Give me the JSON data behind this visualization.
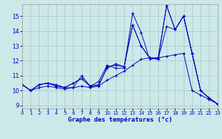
{
  "xlabel": "Graphe des températures (°c)",
  "background_color": "#cce8e8",
  "grid_color": "#aacccc",
  "line_color": "#0000bb",
  "xlim": [
    0,
    23
  ],
  "ylim": [
    8.8,
    15.8
  ],
  "xticks": [
    0,
    1,
    2,
    3,
    4,
    5,
    6,
    7,
    8,
    9,
    10,
    11,
    12,
    13,
    14,
    15,
    16,
    17,
    18,
    19,
    20,
    21,
    22,
    23
  ],
  "yticks": [
    9,
    10,
    11,
    12,
    13,
    14,
    15
  ],
  "curves": [
    {
      "x": [
        0,
        1,
        2,
        3,
        4,
        5,
        6,
        7,
        8,
        9,
        10,
        11,
        12,
        13,
        14,
        15,
        16,
        17,
        18,
        19,
        20,
        21,
        22,
        23
      ],
      "y": [
        10.4,
        10.0,
        10.4,
        10.5,
        10.4,
        10.2,
        10.2,
        11.0,
        10.3,
        10.6,
        11.7,
        11.5,
        11.5,
        15.2,
        13.9,
        12.1,
        12.2,
        15.7,
        14.1,
        15.0,
        12.5,
        10.0,
        9.5,
        9.1
      ]
    },
    {
      "x": [
        0,
        1,
        2,
        3,
        4,
        5,
        6,
        7,
        8,
        9,
        10,
        11,
        12,
        13,
        14,
        15,
        16,
        17,
        18,
        19,
        20,
        21,
        22,
        23
      ],
      "y": [
        10.4,
        10.0,
        10.4,
        10.5,
        10.3,
        10.2,
        10.5,
        10.8,
        10.3,
        10.4,
        11.5,
        11.8,
        11.6,
        14.4,
        13.0,
        12.2,
        12.1,
        15.7,
        14.1,
        15.0,
        12.5,
        10.0,
        9.5,
        9.1
      ]
    },
    {
      "x": [
        0,
        1,
        2,
        3,
        4,
        5,
        6,
        7,
        8,
        9,
        10,
        11,
        12,
        13,
        14,
        15,
        16,
        17,
        18,
        19,
        20,
        21,
        22,
        23
      ],
      "y": [
        10.4,
        10.0,
        10.4,
        10.5,
        10.3,
        10.2,
        10.5,
        10.8,
        10.3,
        10.3,
        11.6,
        11.7,
        11.6,
        14.4,
        13.0,
        12.2,
        12.1,
        14.3,
        14.1,
        15.0,
        12.5,
        10.0,
        9.5,
        9.1
      ]
    },
    {
      "x": [
        0,
        1,
        2,
        3,
        4,
        5,
        6,
        7,
        8,
        9,
        10,
        11,
        12,
        13,
        14,
        15,
        16,
        17,
        18,
        19,
        20,
        21,
        22,
        23
      ],
      "y": [
        10.4,
        10.0,
        10.2,
        10.3,
        10.2,
        10.1,
        10.2,
        10.3,
        10.2,
        10.3,
        10.7,
        11.0,
        11.3,
        11.7,
        12.1,
        12.2,
        12.2,
        12.3,
        12.4,
        12.5,
        10.0,
        9.7,
        9.4,
        9.1
      ]
    }
  ]
}
